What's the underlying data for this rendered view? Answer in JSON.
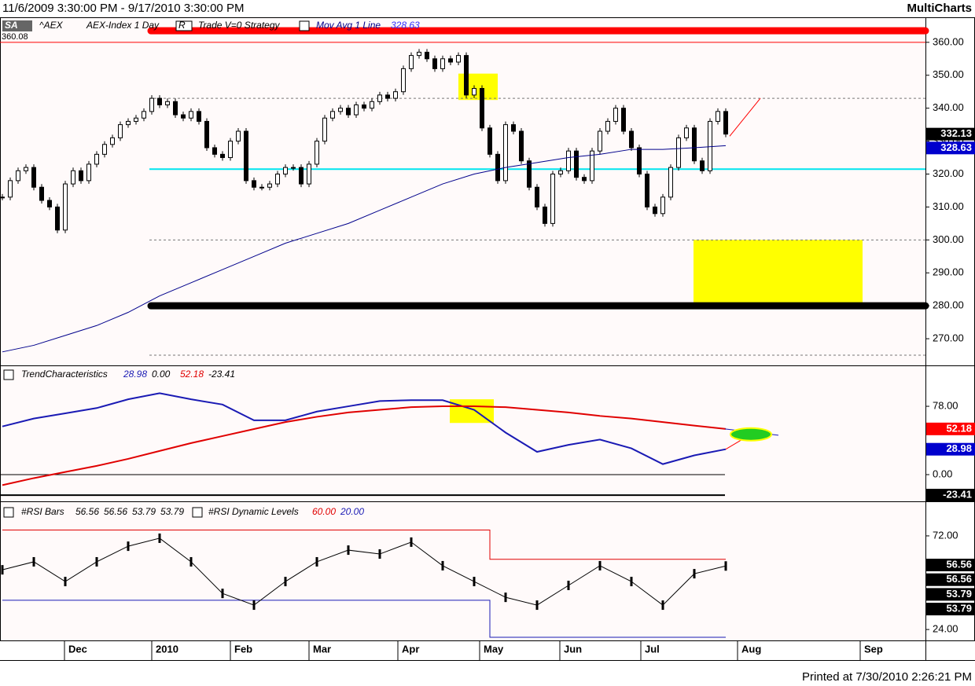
{
  "header": {
    "range": "11/6/2009 3:30:00 PM - 9/17/2010 3:30:00 PM",
    "app": "MultiCharts"
  },
  "footer": "Printed at 7/30/2010 2:26:21 PM",
  "chart_data": [
    {
      "type": "candlestick",
      "symbol_box": "SA",
      "symbol": "^AEX",
      "description": "AEX-Index 1 Day",
      "data_box": "R",
      "strategy": "Trade V=0 Strategy",
      "corner_value": 360.08,
      "values": [
        313,
        318,
        321,
        322,
        316,
        312,
        310,
        303,
        317,
        321,
        318,
        323,
        326,
        329,
        331,
        335,
        336,
        337,
        339,
        343,
        341,
        342,
        338,
        337,
        339,
        336,
        328,
        326,
        325,
        330,
        333,
        318,
        316,
        316,
        317,
        320,
        322,
        322,
        317,
        323,
        330,
        337,
        339,
        340,
        338,
        341,
        340,
        342,
        344,
        343,
        345,
        352,
        356,
        357,
        355,
        352,
        355,
        354,
        356,
        344,
        346,
        334,
        326,
        318,
        335,
        333,
        324,
        316,
        310,
        305,
        320,
        321,
        327,
        319,
        318,
        327,
        333,
        336,
        340,
        333,
        328,
        320,
        310,
        308,
        313,
        322,
        331,
        334,
        324,
        321,
        336,
        339,
        332.13
      ],
      "ylim": [
        261.9,
        367.6
      ],
      "yticks": [
        {
          "value": 270,
          "label": "270.00"
        },
        {
          "value": 280,
          "label": "280.00"
        },
        {
          "value": 290,
          "label": "290.00"
        },
        {
          "value": 300,
          "label": "300.00"
        },
        {
          "value": 310,
          "label": "310.00"
        },
        {
          "value": 320,
          "label": "320.00"
        },
        {
          "value": 330,
          "label": "330.00"
        },
        {
          "value": 340,
          "label": "340.00"
        },
        {
          "value": 350,
          "label": "350.00"
        },
        {
          "value": 360,
          "label": "360.00"
        }
      ],
      "ma": {
        "name": "Mov Avg 1 Line",
        "color": "#00008b",
        "x": [
          0,
          4,
          8,
          12,
          16,
          20,
          24,
          28,
          32,
          36,
          40,
          44,
          48,
          52,
          56,
          60,
          64,
          68,
          72,
          76,
          80,
          84,
          88,
          92
        ],
        "values": [
          266,
          268,
          271,
          274,
          278,
          283,
          287,
          291,
          295,
          299,
          302,
          305,
          309,
          313,
          317,
          320,
          322,
          323.5,
          325,
          326,
          327.5,
          327.5,
          328,
          328.63
        ]
      },
      "levels": [
        {
          "value": 363.5,
          "color": "#ff0000",
          "style": "thick"
        },
        {
          "value": 360,
          "color": "#ff0000",
          "style": "thin"
        },
        {
          "value": 343,
          "color": "#777777",
          "style": "dashed"
        },
        {
          "value": 321.5,
          "color": "#00e5ee",
          "style": "solid"
        },
        {
          "value": 300,
          "color": "#777777",
          "style": "dashed"
        },
        {
          "value": 280,
          "color": "#000000",
          "style": "thick"
        },
        {
          "value": 265,
          "color": "#777777",
          "style": "dashed"
        }
      ],
      "zones": [
        [
          342.5,
          350.5
        ],
        [
          281,
          300
        ]
      ],
      "zone_color": "#ffff00",
      "projection": [
        331.5,
        343
      ]
    },
    {
      "type": "line",
      "name": "TrendCharacteristics",
      "series": [
        {
          "color": "#1a1ab4",
          "x": [
            0,
            4,
            8,
            12,
            16,
            20,
            24,
            28,
            32,
            36,
            40,
            44,
            48,
            52,
            56,
            60,
            64,
            68,
            72,
            76,
            80,
            84,
            88,
            92
          ],
          "values": [
            55,
            64,
            70,
            76,
            86,
            93,
            86,
            80,
            62,
            62,
            72,
            78,
            84,
            85,
            85,
            74,
            48,
            26,
            34,
            40,
            30,
            12,
            22,
            28.98
          ]
        },
        {
          "color": "#e00000",
          "x": [
            0,
            4,
            8,
            12,
            16,
            20,
            24,
            28,
            32,
            36,
            40,
            44,
            48,
            52,
            56,
            60,
            64,
            68,
            72,
            76,
            80,
            84,
            88,
            92
          ],
          "values": [
            -12,
            -4,
            3,
            10,
            18,
            27,
            36,
            44,
            52,
            60,
            66,
            71,
            74,
            77,
            78,
            78,
            77,
            74,
            71,
            67,
            64,
            60,
            56,
            52.18
          ]
        }
      ],
      "hlines": [
        0,
        -23.41
      ],
      "hline_labels": [
        "0.00",
        "-23.41"
      ],
      "ylim": [
        -30.5,
        123.8
      ],
      "yticks": [
        {
          "value": 0,
          "label": "0.00"
        },
        {
          "value": 78,
          "label": "78.00"
        }
      ],
      "marker": 46,
      "zone": [
        59,
        86
      ]
    },
    {
      "type": "line",
      "name": "#RSI Bars",
      "bar_values": [
        56.56,
        56.56,
        53.79,
        53.79
      ],
      "levels_name": "#RSI Dynamic Levels",
      "level_values": [
        60,
        20
      ],
      "level_value_labels": [
        "60.00",
        "20.00"
      ],
      "x": [
        0,
        4,
        8,
        12,
        16,
        20,
        24,
        28,
        32,
        36,
        40,
        44,
        48,
        52,
        56,
        60,
        64,
        68,
        72,
        76,
        80,
        84,
        88,
        92
      ],
      "values": [
        54.6,
        58.7,
        48.6,
        58.7,
        66.7,
        70.8,
        58.7,
        42.5,
        36.5,
        48.6,
        58.7,
        64.7,
        62.7,
        68.8,
        56.7,
        48.6,
        40.5,
        36.5,
        46.6,
        56.7,
        48.6,
        36.5,
        52.6,
        56.56
      ],
      "upper": {
        "x": [
          0,
          62,
          62,
          92
        ],
        "values": [
          75,
          75,
          60,
          60
        ]
      },
      "lower": {
        "x": [
          0,
          62,
          62,
          92
        ],
        "values": [
          39,
          39,
          20,
          20
        ]
      },
      "ylim": [
        18.4,
        88.9
      ],
      "yticks": [
        {
          "value": 24,
          "label": "24.00"
        },
        {
          "value": 72,
          "label": "72.00"
        }
      ],
      "xticks": [
        {
          "value": 7.9,
          "label": "Dec"
        },
        {
          "value": 19,
          "label": "2010"
        },
        {
          "value": 29,
          "label": "Feb"
        },
        {
          "value": 39,
          "label": "Mar"
        },
        {
          "value": 50.3,
          "label": "Apr"
        },
        {
          "value": 60.7,
          "label": "May"
        },
        {
          "value": 70.9,
          "label": "Jun"
        },
        {
          "value": 81.2,
          "label": "Jul"
        },
        {
          "value": 93.5,
          "label": "Aug"
        },
        {
          "value": 109.1,
          "label": "Sep"
        }
      ]
    }
  ]
}
